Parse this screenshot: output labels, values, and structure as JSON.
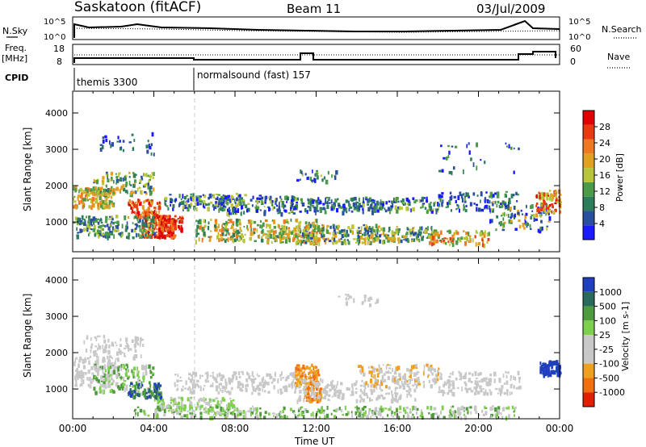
{
  "header": {
    "station": "Saskatoon (fitACF)",
    "beam": "Beam 11",
    "date": "03/Jul/2009"
  },
  "status_panels": {
    "nsky_label": "N.Sky",
    "nsky_ticks": [
      "10^5",
      "10^0"
    ],
    "nsearch_label": "N.Search",
    "nsearch_ticks": [
      "10^5",
      "10^0"
    ],
    "freq_label_line1": "Freq.",
    "freq_label_line2": "[MHz]",
    "freq_ticks": [
      "18",
      "8"
    ],
    "nave_label": "Nave",
    "nave_ticks": [
      "60",
      "0"
    ],
    "cpid_label": "CPID",
    "cpid_segments": [
      {
        "name": "themis 3300",
        "start_hour": 0
      },
      {
        "name": "normalsound (fast) 157",
        "start_hour": 6
      }
    ]
  },
  "chart_data": [
    {
      "type": "heatmap",
      "panel": "power",
      "ylabel": "Slant Range [km]",
      "xlabel": "",
      "yticks": [
        "1000",
        "2000",
        "3000",
        "4000"
      ],
      "ylim": [
        180,
        4600
      ],
      "xlim": [
        0,
        24
      ],
      "colorbar_label": "Power [dB]",
      "colorbar_ticks": [
        "4",
        "8",
        "12",
        "16",
        "20",
        "24",
        "28"
      ],
      "colors": [
        "#1a1aff",
        "#2b4fa0",
        "#2e7d5a",
        "#4a9a4a",
        "#b8c43a",
        "#e0a020",
        "#f07820",
        "#e83a10",
        "#e00000"
      ]
    },
    {
      "type": "heatmap",
      "panel": "velocity",
      "ylabel": "Slant Range [km]",
      "xlabel": "Time UT",
      "xticks": [
        "00:00",
        "04:00",
        "08:00",
        "12:00",
        "16:00",
        "20:00",
        "00:00"
      ],
      "yticks": [
        "1000",
        "2000",
        "3000",
        "4000"
      ],
      "ylim": [
        180,
        4600
      ],
      "xlim": [
        0,
        24
      ],
      "colorbar_label": "Velocity [m s-1]",
      "colorbar_ticks": [
        "1000",
        "500",
        "100",
        "25",
        "-25",
        "-100",
        "-500",
        "-1000"
      ],
      "colors": [
        "#1f3fbf",
        "#2a6a5a",
        "#4f9a3f",
        "#7fcf4f",
        "#c8c8c8",
        "#c8c8c8",
        "#f0a020",
        "#f07010",
        "#e02000"
      ]
    }
  ]
}
